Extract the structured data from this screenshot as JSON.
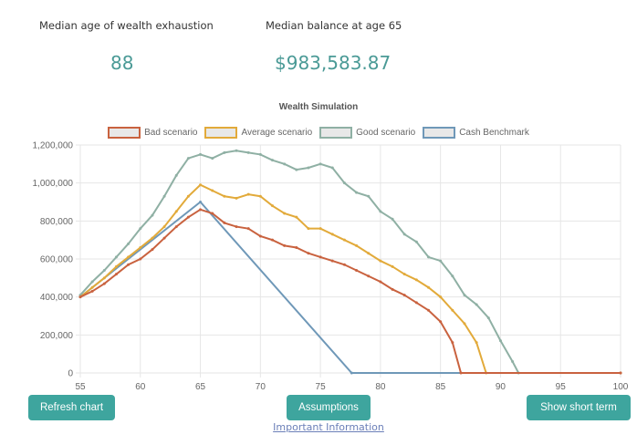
{
  "stats": {
    "exhaustion_label": "Median age of wealth exhaustion",
    "exhaustion_value": "88",
    "balance_label": "Median balance at age 65",
    "balance_value": "$983,583.87"
  },
  "buttons": {
    "refresh": "Refresh chart",
    "assumptions": "Assumptions",
    "short_term": "Show short term",
    "info_link": "Important Information"
  },
  "chart_data": {
    "type": "line",
    "title": "Wealth Simulation",
    "xlabel": "",
    "ylabel": "",
    "xlim": [
      55,
      100
    ],
    "ylim": [
      0,
      1200000
    ],
    "xticks": [
      "55",
      "60",
      "65",
      "70",
      "75",
      "80",
      "85",
      "90",
      "95",
      "100"
    ],
    "yticks": [
      "0",
      "200,000",
      "400,000",
      "600,000",
      "800,000",
      "1,000,000",
      "1,200,000"
    ],
    "legend": "top",
    "series": [
      {
        "name": "Bad scenario",
        "color": "#c9623f",
        "points": [
          [
            55,
            400000
          ],
          [
            56,
            430000
          ],
          [
            57,
            470000
          ],
          [
            58,
            520000
          ],
          [
            59,
            570000
          ],
          [
            60,
            600000
          ],
          [
            61,
            650000
          ],
          [
            62,
            710000
          ],
          [
            63,
            770000
          ],
          [
            64,
            820000
          ],
          [
            65,
            860000
          ],
          [
            66,
            840000
          ],
          [
            67,
            790000
          ],
          [
            68,
            770000
          ],
          [
            69,
            760000
          ],
          [
            70,
            720000
          ],
          [
            71,
            700000
          ],
          [
            72,
            670000
          ],
          [
            73,
            660000
          ],
          [
            74,
            630000
          ],
          [
            75,
            610000
          ],
          [
            76,
            590000
          ],
          [
            77,
            570000
          ],
          [
            78,
            540000
          ],
          [
            79,
            510000
          ],
          [
            80,
            480000
          ],
          [
            81,
            440000
          ],
          [
            82,
            410000
          ],
          [
            83,
            370000
          ],
          [
            84,
            330000
          ],
          [
            85,
            270000
          ],
          [
            86,
            160000
          ],
          [
            86.7,
            0
          ],
          [
            100,
            0
          ]
        ]
      },
      {
        "name": "Average scenario",
        "color": "#e2aa3a",
        "points": [
          [
            55,
            400000
          ],
          [
            56,
            450000
          ],
          [
            57,
            500000
          ],
          [
            58,
            560000
          ],
          [
            59,
            610000
          ],
          [
            60,
            660000
          ],
          [
            61,
            710000
          ],
          [
            62,
            770000
          ],
          [
            63,
            850000
          ],
          [
            64,
            930000
          ],
          [
            65,
            990000
          ],
          [
            66,
            960000
          ],
          [
            67,
            930000
          ],
          [
            68,
            920000
          ],
          [
            69,
            940000
          ],
          [
            70,
            930000
          ],
          [
            71,
            880000
          ],
          [
            72,
            840000
          ],
          [
            73,
            820000
          ],
          [
            74,
            760000
          ],
          [
            75,
            760000
          ],
          [
            76,
            730000
          ],
          [
            77,
            700000
          ],
          [
            78,
            670000
          ],
          [
            79,
            630000
          ],
          [
            80,
            590000
          ],
          [
            81,
            560000
          ],
          [
            82,
            520000
          ],
          [
            83,
            490000
          ],
          [
            84,
            450000
          ],
          [
            85,
            400000
          ],
          [
            86,
            330000
          ],
          [
            87,
            260000
          ],
          [
            88,
            160000
          ],
          [
            88.8,
            0
          ],
          [
            100,
            0
          ]
        ]
      },
      {
        "name": "Good scenario",
        "color": "#8fb0a4",
        "points": [
          [
            55,
            410000
          ],
          [
            56,
            480000
          ],
          [
            57,
            540000
          ],
          [
            58,
            610000
          ],
          [
            59,
            680000
          ],
          [
            60,
            760000
          ],
          [
            61,
            830000
          ],
          [
            62,
            930000
          ],
          [
            63,
            1040000
          ],
          [
            64,
            1130000
          ],
          [
            65,
            1150000
          ],
          [
            66,
            1130000
          ],
          [
            67,
            1160000
          ],
          [
            68,
            1170000
          ],
          [
            69,
            1160000
          ],
          [
            70,
            1150000
          ],
          [
            71,
            1120000
          ],
          [
            72,
            1100000
          ],
          [
            73,
            1070000
          ],
          [
            74,
            1080000
          ],
          [
            75,
            1100000
          ],
          [
            76,
            1080000
          ],
          [
            77,
            1000000
          ],
          [
            78,
            950000
          ],
          [
            79,
            930000
          ],
          [
            80,
            850000
          ],
          [
            81,
            810000
          ],
          [
            82,
            730000
          ],
          [
            83,
            690000
          ],
          [
            84,
            610000
          ],
          [
            85,
            590000
          ],
          [
            86,
            510000
          ],
          [
            87,
            410000
          ],
          [
            88,
            360000
          ],
          [
            89,
            290000
          ],
          [
            90,
            170000
          ],
          [
            91,
            60000
          ],
          [
            91.5,
            0
          ],
          [
            100,
            0
          ]
        ]
      },
      {
        "name": "Cash Benchmark",
        "color": "#6f98b8",
        "points": [
          [
            55,
            400000
          ],
          [
            65,
            900000
          ],
          [
            77.6,
            0
          ],
          [
            100,
            0
          ]
        ]
      }
    ]
  }
}
